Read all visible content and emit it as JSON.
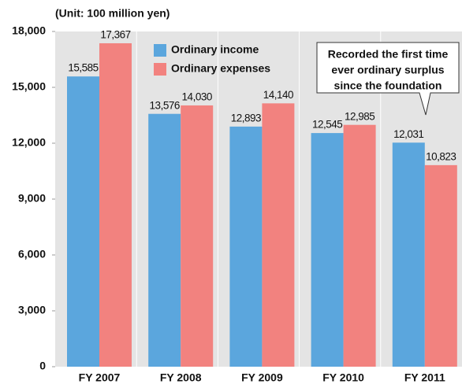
{
  "chart_data": {
    "type": "bar",
    "ylabel": "(Unit: 100 million yen)",
    "categories": [
      "FY 2007",
      "FY 2008",
      "FY 2009",
      "FY 2010",
      "FY 2011"
    ],
    "series": [
      {
        "name": "Ordinary income",
        "color": "#5ba6dd",
        "values": [
          15585,
          13576,
          12893,
          12545,
          12031
        ],
        "value_labels": [
          "15,585",
          "13,576",
          "12,893",
          "12,545",
          "12,031"
        ]
      },
      {
        "name": "Ordinary expenses",
        "color": "#f2827f",
        "values": [
          17367,
          14030,
          14140,
          12985,
          10823
        ],
        "value_labels": [
          "17,367",
          "14,030",
          "14,140",
          "12,985",
          "10,823"
        ]
      }
    ],
    "ylim": [
      0,
      18000
    ],
    "yticks": [
      {
        "value": 0,
        "label": "0"
      },
      {
        "value": 3000,
        "label": "3,000"
      },
      {
        "value": 6000,
        "label": "6,000"
      },
      {
        "value": 9000,
        "label": "9,000"
      },
      {
        "value": 12000,
        "label": "12,000"
      },
      {
        "value": 15000,
        "label": "15,000"
      },
      {
        "value": 18000,
        "label": "18,000"
      }
    ],
    "annotation": [
      "Recorded the first time",
      "ever ordinary surplus",
      "since the foundation"
    ],
    "legend": "upper-left"
  }
}
